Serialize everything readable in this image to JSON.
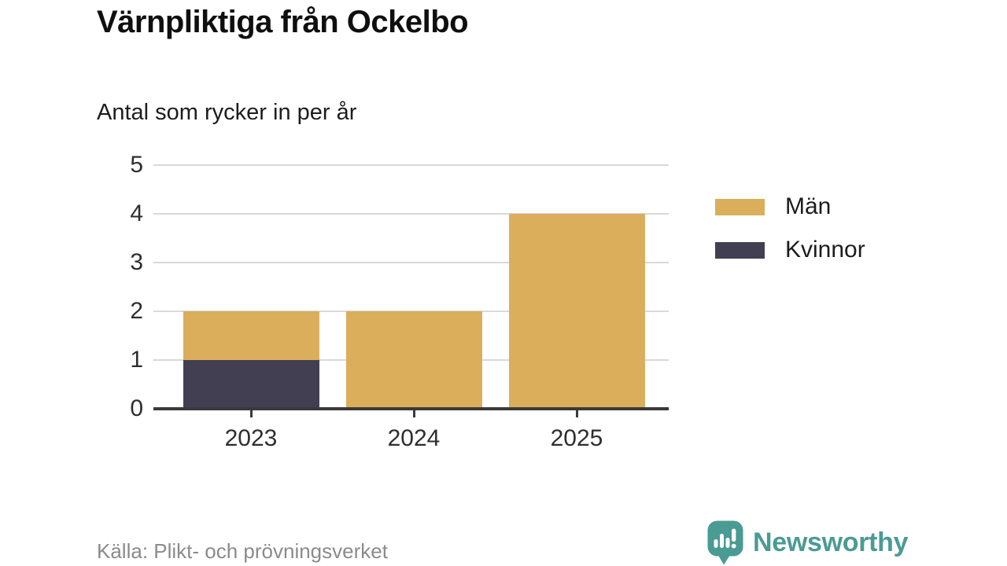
{
  "header": {
    "title": "Värnpliktiga från Ockelbo",
    "subtitle": "Antal som rycker in per år"
  },
  "chart_data": {
    "type": "bar",
    "stacked": true,
    "title": "Värnpliktiga från Ockelbo",
    "subtitle": "Antal som rycker in per år",
    "categories": [
      "2023",
      "2024",
      "2025"
    ],
    "series": [
      {
        "name": "Kvinnor",
        "color": "#423F52",
        "values": [
          1,
          0,
          0
        ]
      },
      {
        "name": "Män",
        "color": "#DBAE5C",
        "values": [
          1,
          2,
          4
        ]
      }
    ],
    "stack_order_bottom_to_top": [
      "Kvinnor",
      "Män"
    ],
    "totals": [
      2,
      2,
      4
    ],
    "xlabel": "",
    "ylabel": "",
    "ylim": [
      0,
      5
    ],
    "yticks": [
      0,
      1,
      2,
      3,
      4,
      5
    ],
    "grid": "horizontal",
    "legend_position": "right"
  },
  "legend": {
    "items": [
      {
        "label": "Män",
        "color": "#DBAE5C"
      },
      {
        "label": "Kvinnor",
        "color": "#423F52"
      }
    ]
  },
  "footer": {
    "source": "Källa: Plikt- och prövningsverket"
  },
  "branding": {
    "name": "Newsworthy",
    "color": "#4A9B94",
    "icon": "speech-bubble-bar-chart-exclamation"
  },
  "colors": {
    "grid": "#D9D9D9",
    "axis": "#3A3A3A",
    "tick_label": "#2E2E2E",
    "source_text": "#8B8B8B"
  }
}
